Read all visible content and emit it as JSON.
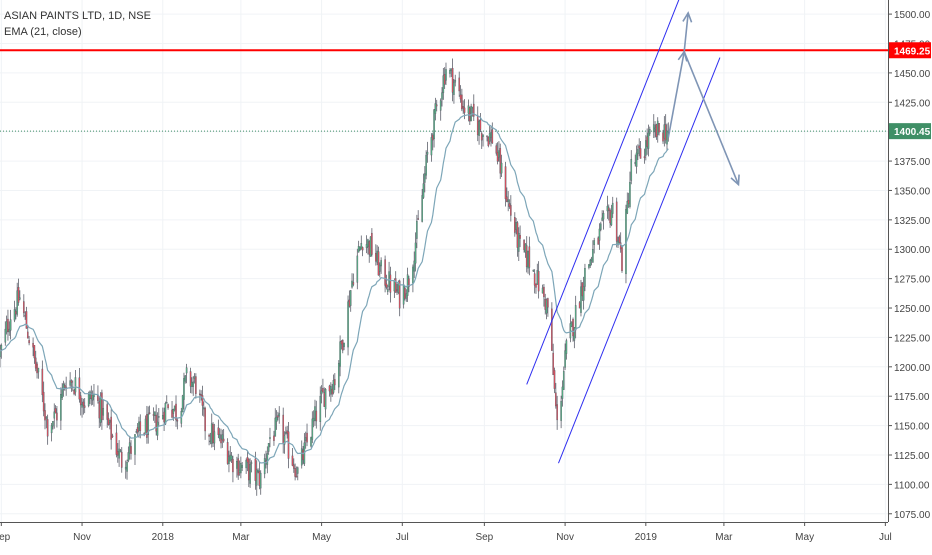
{
  "chart_data": {
    "type": "candlestick",
    "title": "ASIAN PAINTS LTD, 1D, NSE",
    "indicator": "EMA (21, close)",
    "colors": {
      "up": "#53b987",
      "down": "#eb4d5c",
      "ema": "#7da6b8",
      "resistance": "#ff0000",
      "channel": "#2e2ef0",
      "arrow": "#7f95b5",
      "last_price_line": "#3f8f66",
      "grid": "#f0f3f6"
    },
    "ylim": [
      1068,
      1512
    ],
    "y_ticks": [
      1075,
      1100,
      1125,
      1150,
      1175,
      1200,
      1225,
      1250,
      1275,
      1300,
      1325,
      1350,
      1375,
      1400,
      1425,
      1450,
      1475,
      1500
    ],
    "y_tick_labels": [
      "1075.00",
      "1100.00",
      "1125.00",
      "1150.00",
      "1175.00",
      "1200.00",
      "1225.00",
      "1250.00",
      "1275.00",
      "1300.00",
      "1325.00",
      "1350.00",
      "1375.00",
      "1400.00",
      "1425.00",
      "1450.00",
      "1475.00",
      "1500.00"
    ],
    "x_ticks": [
      "2017-09-01",
      "2017-11-01",
      "2018-01-01",
      "2018-03-01",
      "2018-05-01",
      "2018-07-01",
      "2018-09-01",
      "2018-11-01",
      "2019-01-01",
      "2019-03-01",
      "2019-05-01",
      "2019-07-01"
    ],
    "x_tick_labels": [
      "Sep",
      "Nov",
      "2018",
      "Mar",
      "May",
      "Jul",
      "Sep",
      "Nov",
      "2019",
      "Mar",
      "May",
      "Jul"
    ],
    "xlim": [
      "2017-08-31",
      "2019-07-03"
    ],
    "price_anchors": [
      [
        "2017-08-31",
        1210
      ],
      [
        "2017-09-08",
        1245
      ],
      [
        "2017-09-15",
        1258
      ],
      [
        "2017-09-22",
        1225
      ],
      [
        "2017-09-29",
        1190
      ],
      [
        "2017-10-06",
        1150
      ],
      [
        "2017-10-13",
        1160
      ],
      [
        "2017-10-20",
        1190
      ],
      [
        "2017-10-27",
        1185
      ],
      [
        "2017-11-03",
        1170
      ],
      [
        "2017-11-10",
        1175
      ],
      [
        "2017-11-17",
        1160
      ],
      [
        "2017-11-24",
        1140
      ],
      [
        "2017-12-01",
        1120
      ],
      [
        "2017-12-08",
        1130
      ],
      [
        "2017-12-15",
        1145
      ],
      [
        "2017-12-22",
        1150
      ],
      [
        "2017-12-29",
        1155
      ],
      [
        "2018-01-05",
        1170
      ],
      [
        "2018-01-12",
        1160
      ],
      [
        "2018-01-19",
        1190
      ],
      [
        "2018-01-26",
        1185
      ],
      [
        "2018-02-02",
        1150
      ],
      [
        "2018-02-09",
        1140
      ],
      [
        "2018-02-16",
        1135
      ],
      [
        "2018-02-23",
        1120
      ],
      [
        "2018-03-02",
        1115
      ],
      [
        "2018-03-09",
        1110
      ],
      [
        "2018-03-16",
        1105
      ],
      [
        "2018-03-23",
        1140
      ],
      [
        "2018-03-30",
        1150
      ],
      [
        "2018-04-06",
        1130
      ],
      [
        "2018-04-13",
        1110
      ],
      [
        "2018-04-20",
        1135
      ],
      [
        "2018-04-27",
        1160
      ],
      [
        "2018-05-04",
        1180
      ],
      [
        "2018-05-11",
        1190
      ],
      [
        "2018-05-18",
        1230
      ],
      [
        "2018-05-25",
        1280
      ],
      [
        "2018-06-01",
        1310
      ],
      [
        "2018-06-08",
        1300
      ],
      [
        "2018-06-15",
        1280
      ],
      [
        "2018-06-22",
        1270
      ],
      [
        "2018-06-29",
        1260
      ],
      [
        "2018-07-06",
        1275
      ],
      [
        "2018-07-13",
        1320
      ],
      [
        "2018-07-20",
        1380
      ],
      [
        "2018-07-27",
        1420
      ],
      [
        "2018-08-03",
        1455
      ],
      [
        "2018-08-10",
        1440
      ],
      [
        "2018-08-17",
        1420
      ],
      [
        "2018-08-24",
        1410
      ],
      [
        "2018-08-31",
        1400
      ],
      [
        "2018-09-07",
        1395
      ],
      [
        "2018-09-14",
        1365
      ],
      [
        "2018-09-21",
        1330
      ],
      [
        "2018-09-28",
        1300
      ],
      [
        "2018-10-05",
        1290
      ],
      [
        "2018-10-12",
        1270
      ],
      [
        "2018-10-19",
        1250
      ],
      [
        "2018-10-26",
        1150
      ],
      [
        "2018-11-02",
        1215
      ],
      [
        "2018-11-09",
        1245
      ],
      [
        "2018-11-16",
        1280
      ],
      [
        "2018-11-23",
        1300
      ],
      [
        "2018-11-30",
        1320
      ],
      [
        "2018-12-07",
        1335
      ],
      [
        "2018-12-14",
        1290
      ],
      [
        "2018-12-21",
        1370
      ],
      [
        "2018-12-28",
        1380
      ],
      [
        "2019-01-04",
        1395
      ],
      [
        "2019-01-11",
        1400
      ],
      [
        "2019-01-18",
        1402
      ]
    ],
    "last_date": "2019-01-18",
    "ema_period": 21,
    "last_price": 1400.45,
    "last_price_label": "1400.45",
    "resistance": 1469.25,
    "resistance_label": "1469.25",
    "channel_upper": [
      [
        "2018-10-03",
        1185
      ],
      [
        "2019-01-28",
        1518
      ]
    ],
    "channel_lower": [
      [
        "2018-10-27",
        1118
      ],
      [
        "2019-02-26",
        1463
      ]
    ],
    "arrows": [
      {
        "points": [
          [
            "2019-01-18",
            1395
          ],
          [
            "2019-01-30",
            1468
          ]
        ]
      },
      {
        "points": [
          [
            "2019-01-30",
            1468
          ],
          [
            "2019-02-02",
            1501
          ]
        ]
      },
      {
        "points": [
          [
            "2019-01-30",
            1468
          ],
          [
            "2019-03-12",
            1355
          ]
        ]
      }
    ]
  }
}
